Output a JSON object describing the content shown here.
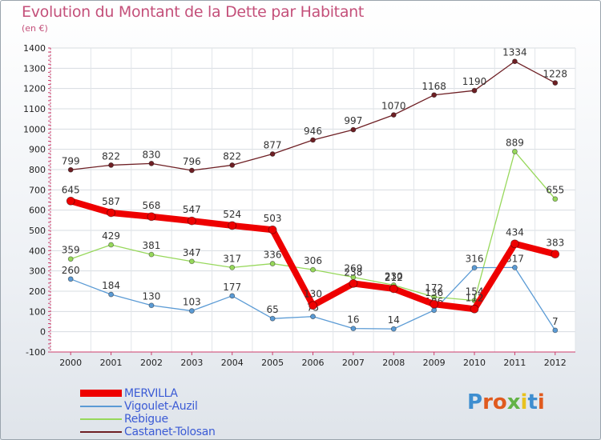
{
  "chart_data": {
    "type": "line",
    "title": "Evolution du Montant de la Dette par Habitant",
    "subtitle": "(en €)",
    "categories": [
      "2000",
      "2001",
      "2002",
      "2003",
      "2004",
      "2005",
      "2006",
      "2007",
      "2008",
      "2009",
      "2010",
      "2011",
      "2012"
    ],
    "ylim": [
      -100,
      1400
    ],
    "yticks": [
      -100,
      0,
      100,
      200,
      300,
      400,
      500,
      600,
      700,
      800,
      900,
      1000,
      1100,
      1200,
      1300,
      1400
    ],
    "grid": true,
    "legend_position": "bottom-left",
    "series": [
      {
        "name": "Castanet-Tolosan",
        "color": "#6e1f24",
        "values": [
          799,
          822,
          830,
          796,
          822,
          877,
          946,
          997,
          1070,
          1168,
          1190,
          1334,
          1228
        ]
      },
      {
        "name": "Rebigue",
        "color": "#97d85b",
        "values": [
          359,
          429,
          381,
          347,
          317,
          336,
          306,
          269,
          230,
          172,
          154,
          889,
          655
        ]
      },
      {
        "name": "Vigoulet-Auzil",
        "color": "#5b9bd5",
        "values": [
          260,
          184,
          130,
          103,
          177,
          65,
          75,
          16,
          14,
          106,
          316,
          317,
          7
        ]
      },
      {
        "name": "MERVILLA",
        "color": "#ee0000",
        "values": [
          645,
          587,
          568,
          547,
          524,
          503,
          130,
          238,
          212,
          136,
          112,
          434,
          383
        ]
      }
    ]
  },
  "legend": [
    {
      "label": "MERVILLA",
      "color": "#ee0000"
    },
    {
      "label": "Vigoulet-Auzil",
      "color": "#5b9bd5"
    },
    {
      "label": "Rebigue",
      "color": "#97d85b"
    },
    {
      "label": "Castanet-Tolosan",
      "color": "#6e1f24"
    }
  ],
  "logo": {
    "text": "Proxiti",
    "letter_colors": [
      "#3e8ed0",
      "#e05a1e",
      "#e05a1e",
      "#63b346",
      "#e8c21e",
      "#3e8ed0",
      "#e05a1e"
    ]
  }
}
